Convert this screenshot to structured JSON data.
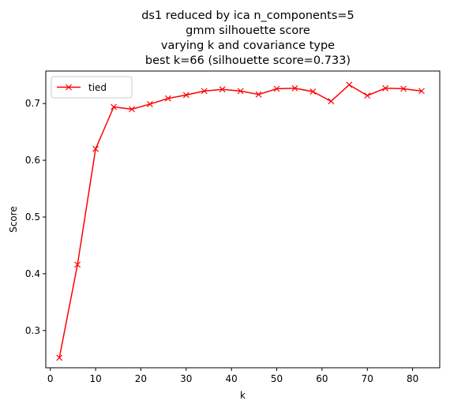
{
  "chart_data": {
    "type": "line",
    "title_lines": [
      "ds1 reduced by ica n_components=5",
      "gmm silhouette score",
      "varying k and covariance type",
      "best k=66 (silhouette score=0.733)"
    ],
    "xlabel": "k",
    "ylabel": "Score",
    "xlim": [
      -1,
      86
    ],
    "ylim": [
      0.2343,
      0.7573
    ],
    "xticks": [
      0,
      10,
      20,
      30,
      40,
      50,
      60,
      70,
      80
    ],
    "yticks": [
      0.3,
      0.4,
      0.5,
      0.6,
      0.7
    ],
    "ytick_labels": [
      "0.3",
      "0.4",
      "0.5",
      "0.6",
      "0.7"
    ],
    "grid": false,
    "legend_position": "upper left",
    "series": [
      {
        "name": "tied",
        "color": "#ff0000",
        "marker": "x",
        "x": [
          2,
          6,
          10,
          14,
          18,
          22,
          26,
          30,
          34,
          38,
          42,
          46,
          50,
          54,
          58,
          62,
          66,
          70,
          74,
          78,
          82
        ],
        "y": [
          0.252,
          0.416,
          0.62,
          0.694,
          0.69,
          0.699,
          0.709,
          0.715,
          0.722,
          0.725,
          0.722,
          0.716,
          0.726,
          0.727,
          0.721,
          0.704,
          0.733,
          0.714,
          0.727,
          0.726,
          0.722
        ]
      }
    ]
  }
}
